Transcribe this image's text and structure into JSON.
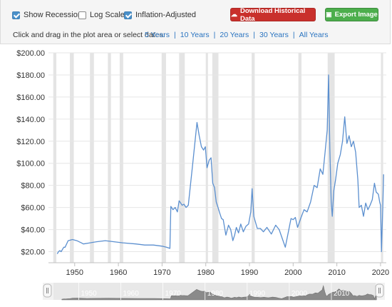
{
  "toolbar": {
    "show_recessions": {
      "label": "Show Recessions",
      "checked": true
    },
    "log_scale": {
      "label": "Log Scale",
      "checked": false
    },
    "inflation_adjusted": {
      "label": "Inflation-Adjusted",
      "checked": true
    },
    "download_label": "Download Historical Data",
    "export_label": "Export Image",
    "hint": "Click and drag in the plot area or select dates:",
    "ranges": [
      "5 Years",
      "10 Years",
      "20 Years",
      "30 Years",
      "All Years"
    ]
  },
  "colors": {
    "line": "#5b8fcf",
    "recession": "#e4e4e4",
    "download": "#c9302c",
    "export": "#4cae4c",
    "link": "#2a74c0"
  },
  "chart_data": {
    "type": "line",
    "title": "",
    "xlabel": "",
    "ylabel": "",
    "xlim": [
      1944,
      2020.5
    ],
    "ylim": [
      10,
      200
    ],
    "y_ticks": [
      "$20.00",
      "$40.00",
      "$60.00",
      "$80.00",
      "$100.00",
      "$120.00",
      "$140.00",
      "$160.00",
      "$180.00",
      "$200.00"
    ],
    "x_ticks": [
      "1950",
      "1960",
      "1970",
      "1980",
      "1990",
      "2000",
      "2010",
      "2020"
    ],
    "recessions": [
      [
        1945.1,
        1945.8
      ],
      [
        1948.9,
        1949.8
      ],
      [
        1953.5,
        1954.4
      ],
      [
        1957.6,
        1958.3
      ],
      [
        1960.3,
        1961.1
      ],
      [
        1969.9,
        1970.9
      ],
      [
        1973.9,
        1975.2
      ],
      [
        1980.0,
        1980.5
      ],
      [
        1981.5,
        1982.9
      ],
      [
        1990.5,
        1991.2
      ],
      [
        2001.2,
        2001.9
      ],
      [
        2007.9,
        2009.5
      ],
      [
        2020.1,
        2020.4
      ]
    ],
    "series": [
      {
        "x": [
          1946.0,
          1946.3,
          1946.6,
          1946.9,
          1947.2,
          1947.5,
          1947.8,
          1948.5,
          1949.5,
          1950.5,
          1951.5,
          1952.0,
          1955.0,
          1957.0,
          1959.0,
          1961.0,
          1964.0,
          1966.0,
          1968.0,
          1970.0,
          1971.0,
          1971.8,
          1972.0,
          1972.5,
          1973.0,
          1973.5,
          1973.9,
          1974.1,
          1974.6,
          1975.0,
          1975.5,
          1976.0,
          1977.0,
          1978.0,
          1978.5,
          1979.0,
          1979.5,
          1979.9,
          1980.3,
          1980.8,
          1981.2,
          1981.6,
          1982.0,
          1982.4,
          1982.8,
          1983.2,
          1983.6,
          1984.0,
          1984.6,
          1985.2,
          1985.7,
          1986.2,
          1986.6,
          1987.0,
          1987.5,
          1988.0,
          1988.6,
          1989.2,
          1989.8,
          1990.3,
          1990.6,
          1991.0,
          1991.8,
          1992.5,
          1993.2,
          1994.0,
          1995.0,
          1996.0,
          1996.8,
          1997.5,
          1998.2,
          1998.9,
          1999.5,
          2000.0,
          2000.5,
          2001.0,
          2001.8,
          2002.5,
          2003.2,
          2004.0,
          2004.8,
          2005.5,
          2006.2,
          2006.8,
          2007.3,
          2007.8,
          2008.1,
          2008.4,
          2008.7,
          2008.95,
          2009.3,
          2009.7,
          2010.2,
          2010.8,
          2011.3,
          2011.8,
          2012.3,
          2012.8,
          2013.3,
          2013.8,
          2014.3,
          2014.8,
          2015.1,
          2015.6,
          2016.1,
          2016.6,
          2017.1,
          2017.6,
          2018.1,
          2018.6,
          2019.0,
          2019.5,
          2019.8,
          2020.0,
          2020.2,
          2020.35,
          2020.5,
          2020.7
        ],
        "y": [
          18,
          20,
          21,
          20,
          22,
          24,
          24,
          30,
          31,
          30,
          28,
          27,
          29,
          30,
          29,
          28,
          27,
          26,
          26,
          25,
          24,
          23,
          61,
          58,
          60,
          56,
          66,
          65,
          62,
          63,
          60,
          62,
          99,
          137,
          125,
          115,
          112,
          115,
          96,
          103,
          105,
          82,
          78,
          65,
          60,
          55,
          50,
          49,
          35,
          44,
          40,
          30,
          35,
          42,
          37,
          45,
          38,
          43,
          45,
          56,
          77,
          52,
          41,
          41,
          38,
          42,
          36,
          44,
          40,
          32,
          24,
          38,
          50,
          49,
          51,
          42,
          51,
          58,
          56,
          65,
          80,
          78,
          95,
          90,
          110,
          130,
          180,
          113,
          65,
          52,
          75,
          85,
          100,
          108,
          120,
          142,
          118,
          125,
          115,
          120,
          110,
          85,
          60,
          62,
          52,
          64,
          58,
          62,
          67,
          82,
          74,
          72,
          65,
          62,
          20,
          40,
          58,
          90
        ]
      }
    ]
  },
  "navigator": {
    "labels": [
      "1950",
      "1960",
      "1970",
      "1980",
      "1990",
      "2000",
      "2010"
    ]
  }
}
